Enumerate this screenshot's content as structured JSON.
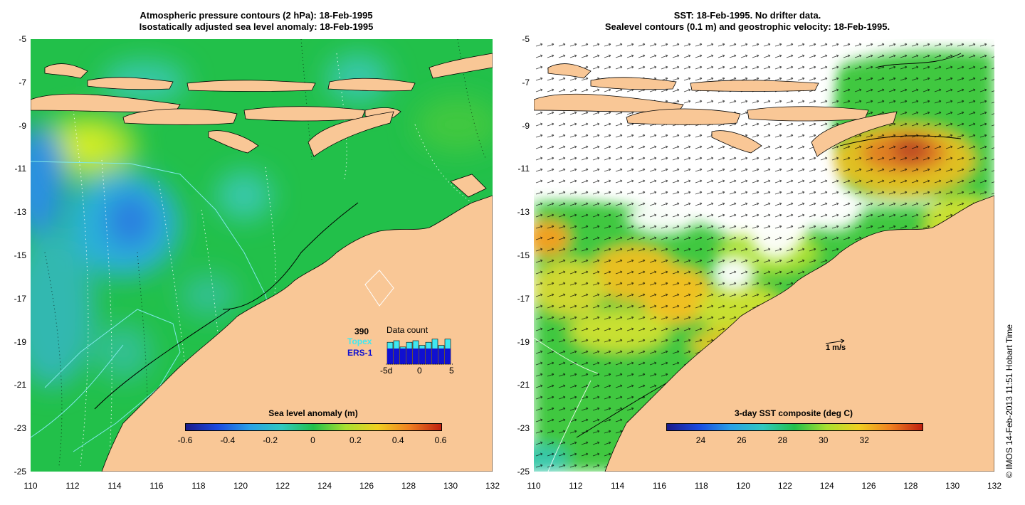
{
  "left_panel": {
    "title_line1": "Atmospheric pressure contours (2 hPa): 18-Feb-1995",
    "title_line2": "Isostatically adjusted sea level anomaly: 18-Feb-1995",
    "colorbar_title": "Sea level anomaly (m)",
    "colorbar_ticks": [
      "-0.6",
      "-0.4",
      "-0.2",
      "0",
      "0.2",
      "0.4",
      "0.6"
    ],
    "data_count": {
      "title": "Data count",
      "number": "390",
      "topex_label": "Topex",
      "ers_label": "ERS-1",
      "axis_ticks": [
        "-5d",
        "0",
        "5"
      ],
      "bar_totals": [
        14,
        15,
        11,
        14,
        15,
        12,
        14,
        16,
        12,
        16
      ],
      "bar_ers": [
        10,
        10,
        10,
        10,
        10,
        10,
        10,
        10,
        10,
        10
      ]
    }
  },
  "right_panel": {
    "title_line1": "SST: 18-Feb-1995. No drifter data.",
    "title_line2": "Sealevel contours (0.1 m) and geostrophic velocity: 18-Feb-1995.",
    "colorbar_title": "3-day SST composite (deg C)",
    "colorbar_ticks": [
      "24",
      "26",
      "28",
      "30",
      "32"
    ],
    "vector_scale_label": "1 m/s"
  },
  "axes": {
    "y_ticks": [
      "-5",
      "-7",
      "-9",
      "-11",
      "-13",
      "-15",
      "-17",
      "-19",
      "-21",
      "-23",
      "-25"
    ],
    "x_ticks": [
      "110",
      "112",
      "114",
      "116",
      "118",
      "120",
      "122",
      "124",
      "126",
      "128",
      "130",
      "132"
    ]
  },
  "credit": "© IMOS 14-Feb-2013 11:51 Hobart Time",
  "colors": {
    "land": "#f9c796",
    "sea_green": "#22c04a",
    "sea_cyan": "#38c8a8",
    "sea_blue": "#2aa0e6",
    "sst_yellow": "#c8e030",
    "sst_orange": "#f0a020",
    "sst_red": "#c05020"
  }
}
